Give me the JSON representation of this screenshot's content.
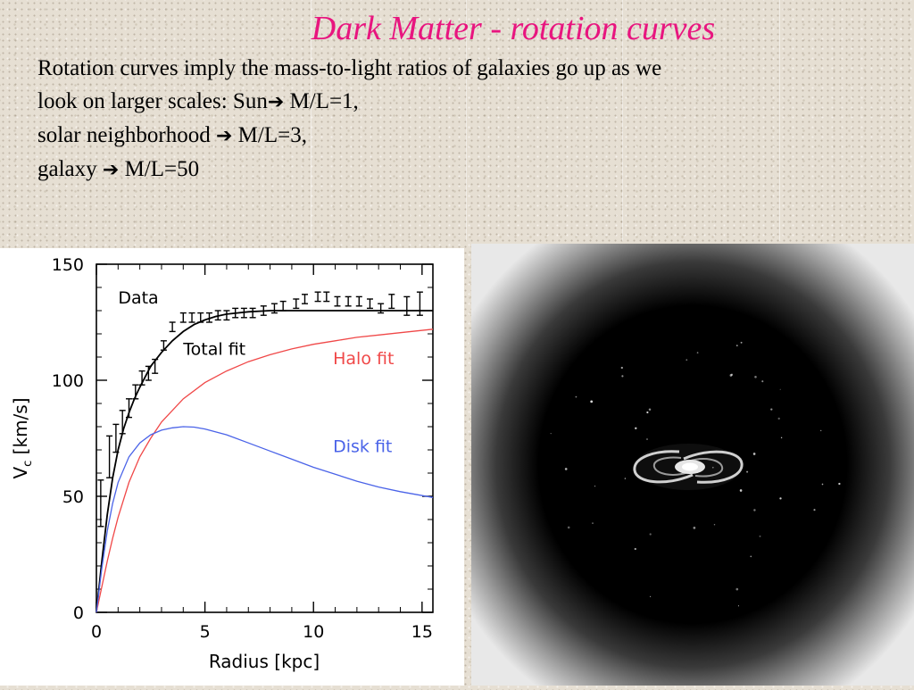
{
  "slide": {
    "title": "Dark Matter  - rotation curves",
    "lines": [
      {
        "pre": "Rotation curves imply the mass-to-light ratios of galaxies go up as we"
      },
      {
        "pre": "look on larger scales:  Sun",
        "post": " M/L=1,"
      },
      {
        "pre": "solar neighborhood ",
        "post": " M/L=3,"
      },
      {
        "pre": "galaxy ",
        "post": " M/L=50"
      }
    ]
  },
  "colors": {
    "title": "#e8157f",
    "total_fit": "#000000",
    "halo_fit": "#f04848",
    "disk_fit": "#4a63e8"
  },
  "image": {
    "content": "spiral-galaxy-icon"
  },
  "chart_data": {
    "type": "line",
    "title": "",
    "xlabel": "Radius [kpc]",
    "ylabel": "V",
    "ylabel_sub": "c",
    "ylabel_unit": " [km/s]",
    "xlim": [
      0,
      15.5
    ],
    "ylim": [
      0,
      150
    ],
    "xticks": [
      0,
      5,
      10,
      15
    ],
    "yticks": [
      0,
      50,
      100,
      150
    ],
    "grid": false,
    "annotations": [
      {
        "text": "Data",
        "x": 1.0,
        "y": 133,
        "color": "#000000"
      },
      {
        "text": "Total fit",
        "x": 4.0,
        "y": 111,
        "color": "#000000"
      },
      {
        "text": "Halo fit",
        "x": 10.9,
        "y": 107,
        "color": "#f04848"
      },
      {
        "text": "Disk fit",
        "x": 10.9,
        "y": 69,
        "color": "#4a63e8"
      }
    ],
    "series": [
      {
        "key": "data",
        "style": "errorbar",
        "points": [
          {
            "x": 0.2,
            "y": 47,
            "err": 10
          },
          {
            "x": 0.6,
            "y": 67,
            "err": 9
          },
          {
            "x": 0.9,
            "y": 75,
            "err": 6
          },
          {
            "x": 1.2,
            "y": 82,
            "err": 5
          },
          {
            "x": 1.5,
            "y": 88,
            "err": 4
          },
          {
            "x": 1.8,
            "y": 95,
            "err": 3
          },
          {
            "x": 2.1,
            "y": 101,
            "err": 3
          },
          {
            "x": 2.4,
            "y": 103,
            "err": 3
          },
          {
            "x": 2.7,
            "y": 106,
            "err": 3
          },
          {
            "x": 3.1,
            "y": 115,
            "err": 2
          },
          {
            "x": 3.5,
            "y": 123,
            "err": 2
          },
          {
            "x": 4.0,
            "y": 127,
            "err": 2
          },
          {
            "x": 4.4,
            "y": 127,
            "err": 2
          },
          {
            "x": 4.8,
            "y": 127,
            "err": 2
          },
          {
            "x": 5.2,
            "y": 127,
            "err": 2
          },
          {
            "x": 5.6,
            "y": 128,
            "err": 2
          },
          {
            "x": 6.0,
            "y": 128,
            "err": 2
          },
          {
            "x": 6.4,
            "y": 129,
            "err": 2
          },
          {
            "x": 6.8,
            "y": 129,
            "err": 2
          },
          {
            "x": 7.2,
            "y": 129,
            "err": 2
          },
          {
            "x": 7.7,
            "y": 130,
            "err": 2
          },
          {
            "x": 8.2,
            "y": 131,
            "err": 2
          },
          {
            "x": 8.6,
            "y": 132,
            "err": 2
          },
          {
            "x": 9.2,
            "y": 133,
            "err": 2
          },
          {
            "x": 9.6,
            "y": 135,
            "err": 2
          },
          {
            "x": 10.2,
            "y": 136,
            "err": 2
          },
          {
            "x": 10.6,
            "y": 136,
            "err": 2
          },
          {
            "x": 11.1,
            "y": 134,
            "err": 2
          },
          {
            "x": 11.6,
            "y": 134,
            "err": 2
          },
          {
            "x": 12.1,
            "y": 134,
            "err": 2
          },
          {
            "x": 12.6,
            "y": 133,
            "err": 2
          },
          {
            "x": 13.1,
            "y": 131,
            "err": 2
          },
          {
            "x": 13.6,
            "y": 134,
            "err": 3
          },
          {
            "x": 14.3,
            "y": 132,
            "err": 4
          },
          {
            "x": 14.9,
            "y": 133,
            "err": 5
          }
        ]
      },
      {
        "key": "total_fit",
        "style": "line",
        "x": [
          0,
          0.25,
          0.5,
          0.75,
          1,
          1.25,
          1.5,
          1.75,
          2,
          2.5,
          3,
          3.5,
          4,
          4.5,
          5,
          5.5,
          6,
          7,
          8,
          9,
          10,
          11,
          12,
          13,
          14,
          15.5
        ],
        "y": [
          0,
          22,
          42,
          58,
          70,
          79,
          86,
          92,
          97,
          106,
          112,
          117,
          121,
          124,
          126,
          127.5,
          128.5,
          129.5,
          130,
          130,
          130,
          130,
          130,
          130,
          130,
          130
        ]
      },
      {
        "key": "halo_fit",
        "style": "line",
        "x": [
          0,
          0.25,
          0.5,
          0.75,
          1,
          1.5,
          2,
          2.5,
          3,
          4,
          5,
          6,
          7,
          8,
          9,
          10,
          11,
          12,
          13,
          14,
          15.5
        ],
        "y": [
          0,
          11,
          22,
          32,
          41,
          56,
          67,
          75,
          82,
          92,
          99,
          104,
          108,
          111,
          113.5,
          115.5,
          117,
          118.5,
          119.5,
          120.5,
          122
        ]
      },
      {
        "key": "disk_fit",
        "style": "line",
        "x": [
          0,
          0.25,
          0.5,
          0.75,
          1,
          1.5,
          2,
          2.5,
          3,
          3.5,
          4,
          4.5,
          5,
          6,
          7,
          8,
          9,
          10,
          11,
          12,
          13,
          14,
          15.5
        ],
        "y": [
          0,
          19,
          35,
          47,
          56,
          67,
          73,
          76.5,
          78.5,
          79.5,
          80,
          79.8,
          79,
          76.5,
          73,
          69.5,
          66,
          62.5,
          59.5,
          56.5,
          54,
          52,
          49.5
        ]
      }
    ]
  }
}
